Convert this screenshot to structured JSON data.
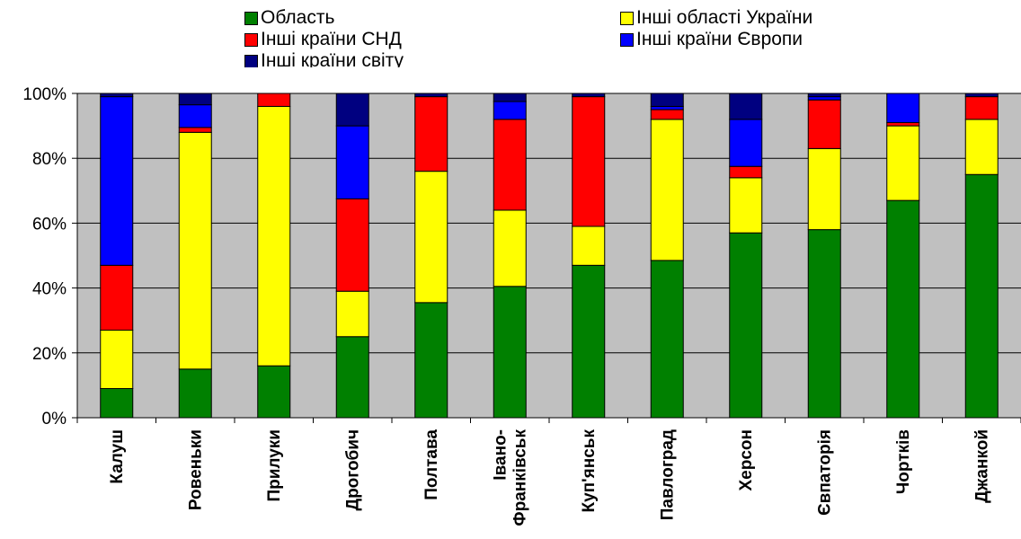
{
  "chart_data": {
    "type": "bar",
    "stacked": true,
    "normalized": true,
    "title": "",
    "xlabel": "",
    "ylabel": "",
    "ylim": [
      0,
      100
    ],
    "y_ticks": [
      "0%",
      "20%",
      "40%",
      "60%",
      "80%",
      "100%"
    ],
    "grid": true,
    "legend_position": "top",
    "plot_background": "#C0C0C0",
    "categories": [
      "Калуш",
      "Ровеньки",
      "Прилуки",
      "Дрогобич",
      "Полтава",
      "Івано-Франківськ",
      "Куп'янськ",
      "Павлоград",
      "Херсон",
      "Євпаторія",
      "Чортків",
      "Джанкой"
    ],
    "series": [
      {
        "name": "Область",
        "color": "#008000",
        "values": [
          9,
          15,
          16,
          25,
          35.5,
          40.5,
          47,
          48.5,
          57,
          58,
          67,
          75
        ]
      },
      {
        "name": "Інші області України",
        "color": "#FFFF00",
        "values": [
          18,
          73,
          80,
          14,
          40.5,
          23.5,
          12,
          43.5,
          17,
          25,
          23,
          17
        ]
      },
      {
        "name": "Інші країни СНД",
        "color": "#FF0000",
        "values": [
          20,
          1.5,
          4,
          28.5,
          23,
          28,
          40,
          3,
          3.5,
          15,
          1,
          7
        ]
      },
      {
        "name": "Інші країни Європи",
        "color": "#0000FF",
        "values": [
          52,
          7,
          0,
          22.5,
          0,
          5.5,
          0,
          1,
          14.5,
          1,
          9,
          0
        ]
      },
      {
        "name": "Інші країни світу",
        "color": "#000080",
        "values": [
          1,
          3.5,
          0,
          10,
          1,
          2.5,
          1,
          4,
          8,
          1,
          0,
          1
        ]
      }
    ]
  }
}
